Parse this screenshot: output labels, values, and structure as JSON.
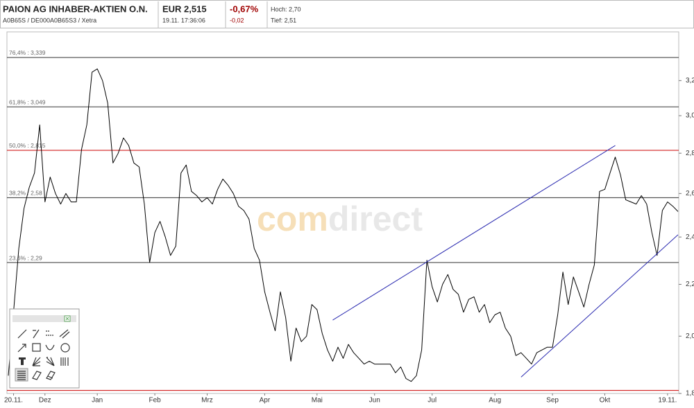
{
  "header": {
    "title": "PAION AG INHABER-AKTIEN O.N.",
    "subtitle": "A0B65S / DE000A0B65S3 / Xetra",
    "price": "EUR 2,515",
    "time": "19.11. 17:36:06",
    "change_pct": "-0,67%",
    "change_abs": "-0,02",
    "high": "Hoch: 2,70",
    "low": "Tief: 2,51"
  },
  "chart_data": {
    "type": "line",
    "log_y": true,
    "y_axis": "right",
    "watermark": [
      "com",
      "direct"
    ],
    "categories": [
      null,
      "20.11.",
      null,
      null,
      null,
      null,
      null,
      "Dez",
      null,
      null,
      null,
      null,
      null,
      null,
      null,
      null,
      null,
      "Jan",
      null,
      null,
      null,
      null,
      null,
      null,
      null,
      null,
      null,
      null,
      "Feb",
      null,
      null,
      null,
      null,
      null,
      null,
      null,
      null,
      null,
      "Mrz",
      null,
      null,
      null,
      null,
      null,
      null,
      null,
      null,
      null,
      null,
      "Apr",
      null,
      null,
      null,
      null,
      null,
      null,
      null,
      null,
      null,
      "Mai",
      null,
      null,
      null,
      null,
      null,
      null,
      null,
      null,
      null,
      null,
      "Jun",
      null,
      null,
      null,
      null,
      null,
      null,
      null,
      null,
      null,
      null,
      "Jul",
      null,
      null,
      null,
      null,
      null,
      null,
      null,
      null,
      null,
      null,
      null,
      "Aug",
      null,
      null,
      null,
      null,
      null,
      null,
      null,
      null,
      null,
      null,
      "Sep",
      null,
      null,
      null,
      null,
      null,
      null,
      null,
      null,
      null,
      "Okt",
      null,
      null,
      null,
      null,
      null,
      null,
      null,
      null,
      null,
      null,
      null,
      "19.11.",
      null,
      null
    ],
    "series": [
      {
        "color": "#000000",
        "values": [
          1.86,
          2.09,
          2.35,
          2.53,
          2.63,
          2.7,
          2.95,
          2.56,
          2.68,
          2.6,
          2.55,
          2.6,
          2.56,
          2.56,
          2.82,
          2.95,
          3.25,
          3.27,
          3.2,
          3.07,
          2.75,
          2.8,
          2.88,
          2.84,
          2.75,
          2.73,
          2.55,
          2.29,
          2.42,
          2.47,
          2.4,
          2.32,
          2.36,
          2.7,
          2.74,
          2.61,
          2.59,
          2.56,
          2.58,
          2.55,
          2.62,
          2.67,
          2.64,
          2.6,
          2.54,
          2.52,
          2.48,
          2.35,
          2.3,
          2.17,
          2.09,
          2.02,
          2.17,
          2.07,
          1.91,
          2.03,
          1.98,
          2.0,
          2.12,
          2.1,
          2.01,
          1.95,
          1.91,
          1.96,
          1.92,
          1.97,
          1.94,
          1.92,
          1.9,
          1.91,
          1.9,
          1.9,
          1.9,
          1.9,
          1.87,
          1.89,
          1.85,
          1.84,
          1.86,
          1.95,
          2.3,
          2.19,
          2.13,
          2.2,
          2.24,
          2.18,
          2.16,
          2.09,
          2.14,
          2.15,
          2.09,
          2.12,
          2.05,
          2.08,
          2.09,
          2.03,
          2.0,
          1.93,
          1.94,
          1.92,
          1.9,
          1.94,
          1.95,
          1.96,
          1.96,
          2.08,
          2.25,
          2.12,
          2.23,
          2.17,
          2.11,
          2.2,
          2.28,
          2.61,
          2.62,
          2.7,
          2.78,
          2.69,
          2.57,
          2.56,
          2.55,
          2.59,
          2.55,
          2.42,
          2.32,
          2.52,
          2.56,
          2.54,
          2.515
        ]
      }
    ],
    "ylim": [
      1.8,
      3.5
    ],
    "yticks": [
      {
        "value": 1.8,
        "label": "1,8"
      },
      {
        "value": 2.0,
        "label": "2,0"
      },
      {
        "value": 2.2,
        "label": "2,2"
      },
      {
        "value": 2.4,
        "label": "2,4"
      },
      {
        "value": 2.6,
        "label": "2,6"
      },
      {
        "value": 2.8,
        "label": "2,8"
      },
      {
        "value": 3.0,
        "label": "3,0"
      },
      {
        "value": 3.2,
        "label": "3,2"
      }
    ],
    "levels": [
      {
        "label": "76,4% : 3,339",
        "value": 3.339,
        "color": "#333333"
      },
      {
        "label": "61,8% : 3,049",
        "value": 3.049,
        "color": "#333333"
      },
      {
        "label": "50,0% : 2,815",
        "value": 2.815,
        "color": "#cc0000"
      },
      {
        "label": "38,2% : 2,58",
        "value": 2.58,
        "color": "#333333"
      },
      {
        "label": "23,6% : 2,29",
        "value": 2.29,
        "color": "#333333"
      },
      {
        "value": 1.81,
        "color": "#cc0000"
      }
    ],
    "trendlines": [
      {
        "from": [
          62,
          2.06
        ],
        "to": [
          116,
          2.84
        ],
        "color": "#2a2ab0"
      },
      {
        "from": [
          98,
          1.855
        ],
        "to": [
          128,
          2.41
        ],
        "color": "#2a2ab0"
      }
    ]
  }
}
